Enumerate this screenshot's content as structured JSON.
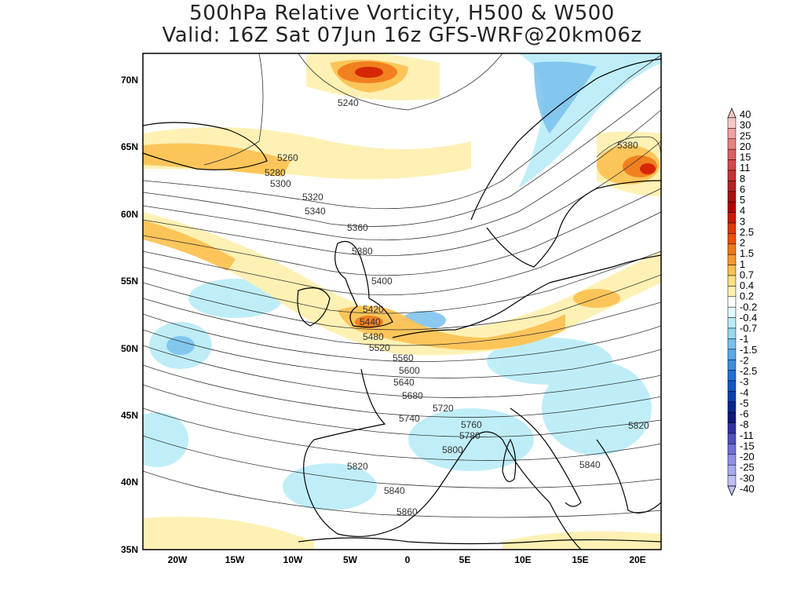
{
  "title_line1": "500hPa Relative Vorticity, H500 & W500",
  "title_line2": "Valid: 16Z Sat 07Jun 16z GFS-WRF@20km06z",
  "lat_labels": [
    "70N",
    "65N",
    "60N",
    "55N",
    "50N",
    "45N",
    "40N",
    "35N"
  ],
  "lon_labels": [
    "20W",
    "15W",
    "10W",
    "5W",
    "0",
    "5E",
    "10E",
    "15E",
    "20E"
  ],
  "contour_labels": [
    "5240",
    "5260",
    "5280",
    "5300",
    "5320",
    "5340",
    "5360",
    "5380",
    "5400",
    "5420",
    "5440",
    "5480",
    "5520",
    "5560",
    "5600",
    "5640",
    "5680",
    "5720",
    "5740",
    "5760",
    "5780",
    "5800",
    "5820",
    "5840",
    "5860",
    "5380",
    "5820",
    "5840"
  ],
  "colorbar": {
    "labels": [
      "40",
      "30",
      "25",
      "20",
      "15",
      "11",
      "8",
      "6",
      "5",
      "4",
      "3",
      "2.5",
      "2",
      "1.5",
      "1",
      "0.7",
      "0.4",
      "0.2",
      "-0.2",
      "-0.4",
      "-0.7",
      "-1",
      "-1.5",
      "-2",
      "-2.5",
      "-3",
      "-4",
      "-5",
      "-6",
      "-8",
      "-11",
      "-15",
      "-20",
      "-25",
      "-30",
      "-40"
    ],
    "colors": [
      "#f7c6c6",
      "#f0a0a0",
      "#e88080",
      "#e06060",
      "#d84848",
      "#c83030",
      "#b82020",
      "#a81010",
      "#b80000",
      "#d01800",
      "#e03800",
      "#f05000",
      "#f07818",
      "#f89830",
      "#fcc050",
      "#fde080",
      "#fff0b0",
      "#ffffff",
      "#e0f8ff",
      "#b8ecf8",
      "#98d8f0",
      "#78c0ec",
      "#5aa8e8",
      "#3c8ce0",
      "#2070d8",
      "#1058c8",
      "#0840b0",
      "#082890",
      "#101880",
      "#3030a0",
      "#5050c0",
      "#7070d8",
      "#9090e8",
      "#a8a8f0",
      "#c0c0f8"
    ]
  },
  "colors": {
    "ocean_bg": "#ffffff",
    "coast": "#000000",
    "contour": "#333333",
    "positive_vort": "#fcc050",
    "negative_vort": "#b8ecf8"
  }
}
